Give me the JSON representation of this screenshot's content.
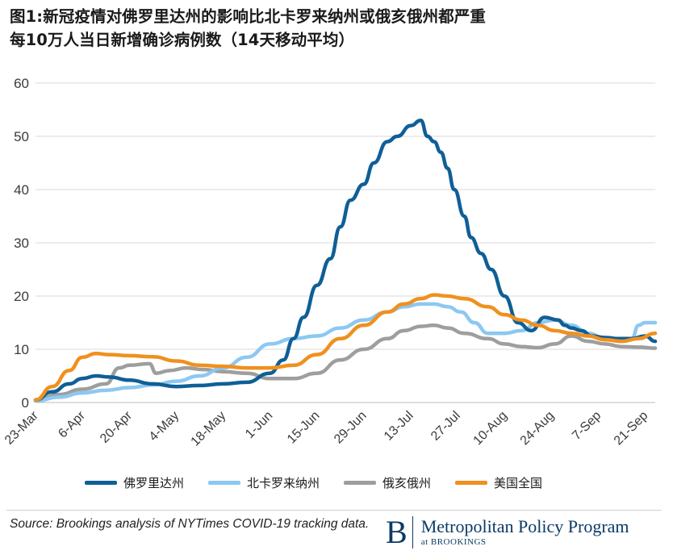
{
  "title": {
    "line1": "图1:新冠疫情对佛罗里达州的影响比北卡罗来纳州或俄亥俄州都严重",
    "line2": "每10万人当日新增确诊病例数（14天移动平均）"
  },
  "source": "Source: Brookings analysis of NYTimes COVID-19 tracking data.",
  "logo": {
    "letter": "B",
    "name": "Metropolitan Policy Program",
    "sub": "at BROOKINGS"
  },
  "chart_data": {
    "type": "line",
    "title": "图1:新冠疫情对佛罗里达州的影响比北卡罗来纳州或俄亥俄州都严重",
    "subtitle": "每10万人当日新增确诊病例数（14天移动平均）",
    "x_ticks": [
      "23-Mar",
      "6-Apr",
      "20-Apr",
      "4-May",
      "18-May",
      "1-Jun",
      "15-Jun",
      "29-Jun",
      "13-Jul",
      "27-Jul",
      "10-Aug",
      "24-Aug",
      "7-Sep",
      "21-Sep"
    ],
    "x_unit": "days since 23-Mar",
    "xlim": [
      0,
      185
    ],
    "ylim": [
      0,
      60
    ],
    "y_ticks": [
      0,
      10,
      20,
      30,
      40,
      50,
      60
    ],
    "grid": true,
    "legend_position": "bottom",
    "series": [
      {
        "name": "佛罗里达州",
        "color": "#0f5f96",
        "x": [
          0,
          5,
          10,
          14,
          18,
          22,
          28,
          35,
          42,
          49,
          56,
          63,
          70,
          74,
          77,
          80,
          84,
          88,
          91,
          94,
          98,
          101,
          105,
          108,
          112,
          115,
          117,
          119,
          121,
          123,
          125,
          128,
          130,
          133,
          136,
          140,
          144,
          148,
          152,
          156,
          158,
          160,
          163,
          166,
          170,
          174,
          178,
          182,
          185
        ],
        "values": [
          0.5,
          2,
          3.5,
          4.5,
          5,
          4.8,
          4.2,
          3.5,
          3.0,
          3.2,
          3.5,
          3.8,
          5.5,
          8,
          12,
          16,
          22,
          27,
          33,
          38,
          41,
          45,
          49,
          50,
          52,
          53,
          50,
          49,
          47,
          44,
          40,
          35,
          31,
          28,
          25,
          20,
          15,
          13.5,
          16,
          15.5,
          14.5,
          14,
          13.5,
          12.5,
          12.2,
          12,
          12,
          12.5,
          11.5
        ]
      },
      {
        "name": "北卡罗来纳州",
        "color": "#8cc8f2",
        "x": [
          0,
          7,
          14,
          21,
          28,
          35,
          42,
          49,
          56,
          63,
          70,
          77,
          84,
          91,
          98,
          105,
          110,
          115,
          119,
          123,
          127,
          131,
          135,
          140,
          145,
          150,
          155,
          160,
          165,
          170,
          175,
          178,
          180,
          182,
          185
        ],
        "values": [
          0.3,
          1,
          1.8,
          2.3,
          2.8,
          3.3,
          4.0,
          5.0,
          6.5,
          8.5,
          11,
          12,
          12.5,
          14,
          15.5,
          17,
          18,
          18.5,
          18.5,
          18,
          17,
          15,
          13,
          13,
          13.5,
          15,
          15.5,
          14.5,
          13,
          12,
          11.5,
          12,
          14.5,
          15,
          15
        ]
      },
      {
        "name": "俄亥俄州",
        "color": "#9e9e9e",
        "x": [
          0,
          7,
          14,
          21,
          25,
          28,
          34,
          36,
          40,
          45,
          50,
          56,
          63,
          70,
          77,
          84,
          91,
          98,
          105,
          110,
          115,
          119,
          123,
          128,
          135,
          140,
          145,
          150,
          155,
          160,
          165,
          170,
          175,
          180,
          185
        ],
        "values": [
          0.3,
          1.5,
          2.5,
          3.5,
          6.5,
          7,
          7.3,
          5.5,
          6,
          6.5,
          6.2,
          5.8,
          5.5,
          4.5,
          4.5,
          5.5,
          8,
          10,
          12,
          13.5,
          14.3,
          14.5,
          14,
          13,
          12,
          11,
          10.5,
          10.3,
          11,
          12.5,
          11.5,
          11,
          10.5,
          10.4,
          10.2
        ]
      },
      {
        "name": "美国全国",
        "color": "#f0901e",
        "x": [
          0,
          5,
          10,
          14,
          18,
          22,
          28,
          35,
          42,
          49,
          56,
          63,
          70,
          77,
          84,
          91,
          98,
          105,
          110,
          115,
          119,
          123,
          128,
          135,
          140,
          145,
          150,
          155,
          160,
          165,
          170,
          175,
          180,
          185
        ],
        "values": [
          0.5,
          3,
          6,
          8.5,
          9.2,
          9.0,
          8.8,
          8.6,
          7.8,
          7.0,
          6.8,
          6.5,
          6.5,
          7,
          9,
          12,
          14.5,
          17,
          18.5,
          19.5,
          20.2,
          20,
          19.5,
          18,
          16.5,
          15.5,
          14.5,
          13.5,
          13,
          12.5,
          11.8,
          11.5,
          12,
          13
        ]
      }
    ]
  }
}
